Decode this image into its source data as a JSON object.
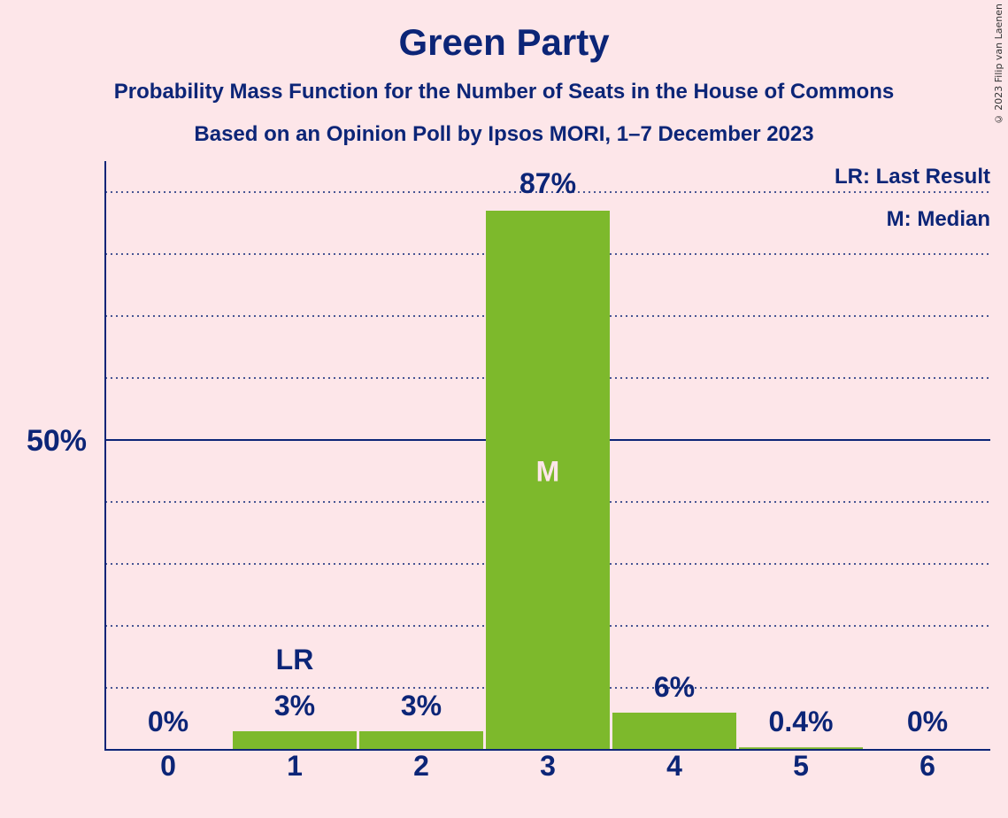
{
  "title": "Green Party",
  "subtitle1": "Probability Mass Function for the Number of Seats in the House of Commons",
  "subtitle2": "Based on an Opinion Poll by Ipsos MORI, 1–7 December 2023",
  "copyright": "© 2023 Filip van Laenen",
  "legend": {
    "last_result": "LR: Last Result",
    "median": "M: Median"
  },
  "colors": {
    "background": "#fde6e9",
    "bar": "#7db92c",
    "axis": "#0c2577"
  },
  "chart_data": {
    "type": "bar",
    "categories": [
      "0",
      "1",
      "2",
      "3",
      "4",
      "5",
      "6"
    ],
    "values": [
      0,
      3,
      3,
      87,
      6,
      0.4,
      0
    ],
    "value_labels": [
      "0%",
      "3%",
      "3%",
      "87%",
      "6%",
      "0.4%",
      "0%"
    ],
    "ylim": [
      0,
      95
    ],
    "ytick_label": "50%",
    "ytick_value": 50,
    "grid_step": 10,
    "markers": {
      "last_result": {
        "category": "1",
        "label": "LR"
      },
      "median": {
        "category": "3",
        "label": "M"
      }
    }
  }
}
